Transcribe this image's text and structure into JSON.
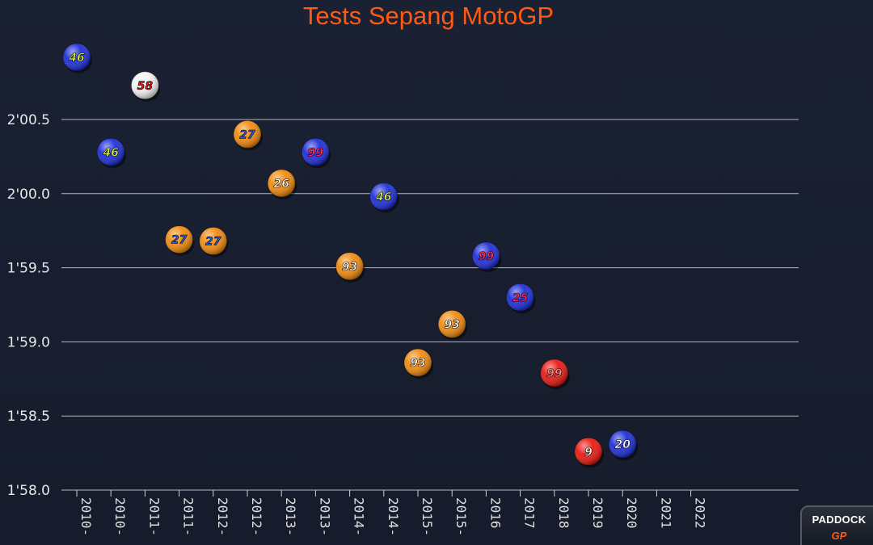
{
  "chart_data": {
    "type": "scatter",
    "title": "Tests Sepang MotoGP",
    "xlabel": "",
    "ylabel": "",
    "yticks": [
      "1'58.0",
      "1'58.5",
      "1'59.0",
      "1'59.5",
      "2'00.0",
      "2'00.5"
    ],
    "ytick_values": [
      118.0,
      118.5,
      119.0,
      119.5,
      120.0,
      120.5
    ],
    "ylim": [
      118.0,
      121.0
    ],
    "grid": true,
    "categories": [
      "2010-",
      "2010-",
      "2011-",
      "2011-",
      "2012-",
      "2012-",
      "2013-",
      "2013-",
      "2014-",
      "2014-",
      "2015-",
      "2015-",
      "2016",
      "2017",
      "2018",
      "2019",
      "2020",
      "2021",
      "2022"
    ],
    "points": [
      {
        "cat": 0,
        "y": 120.92,
        "rider": "46",
        "color": "#1f2fd6",
        "numcolor": "#d8f23a"
      },
      {
        "cat": 1,
        "y": 120.28,
        "rider": "46",
        "color": "#1f2fd6",
        "numcolor": "#d8f23a"
      },
      {
        "cat": 2,
        "y": 120.73,
        "rider": "58",
        "color": "#f2f2f2",
        "numcolor": "#e01818"
      },
      {
        "cat": 3,
        "y": 119.69,
        "rider": "27",
        "color": "#f08a10",
        "numcolor": "#2a5bd8"
      },
      {
        "cat": 4,
        "y": 119.68,
        "rider": "27",
        "color": "#f08a10",
        "numcolor": "#2a5bd8"
      },
      {
        "cat": 5,
        "y": 120.4,
        "rider": "27",
        "color": "#f08a10",
        "numcolor": "#2a5bd8"
      },
      {
        "cat": 6,
        "y": 120.07,
        "rider": "26",
        "color": "#f08a10",
        "numcolor": "#ffffff"
      },
      {
        "cat": 7,
        "y": 120.28,
        "rider": "99",
        "color": "#1f2fd6",
        "numcolor": "#ff2a5a"
      },
      {
        "cat": 8,
        "y": 119.51,
        "rider": "93",
        "color": "#f08a10",
        "numcolor": "#ffffff"
      },
      {
        "cat": 9,
        "y": 119.98,
        "rider": "46",
        "color": "#1f2fd6",
        "numcolor": "#d8f23a"
      },
      {
        "cat": 10,
        "y": 118.86,
        "rider": "93",
        "color": "#f08a10",
        "numcolor": "#ffffff"
      },
      {
        "cat": 11,
        "y": 119.12,
        "rider": "93",
        "color": "#f08a10",
        "numcolor": "#ffffff"
      },
      {
        "cat": 12,
        "y": 119.58,
        "rider": "99",
        "color": "#1f2fd6",
        "numcolor": "#ff2a5a"
      },
      {
        "cat": 13,
        "y": 119.3,
        "rider": "25",
        "color": "#1f2fd6",
        "numcolor": "#ff2a5a"
      },
      {
        "cat": 14,
        "y": 118.79,
        "rider": "99",
        "color": "#e81a12",
        "numcolor": "#ff8a8a"
      },
      {
        "cat": 15,
        "y": 118.26,
        "rider": "9",
        "color": "#e81a12",
        "numcolor": "#ffffff"
      },
      {
        "cat": 16,
        "y": 118.31,
        "rider": "20",
        "color": "#1f2fd6",
        "numcolor": "#ffffff"
      }
    ]
  },
  "logo": {
    "text": "PADDOCK",
    "sub": "GP"
  }
}
